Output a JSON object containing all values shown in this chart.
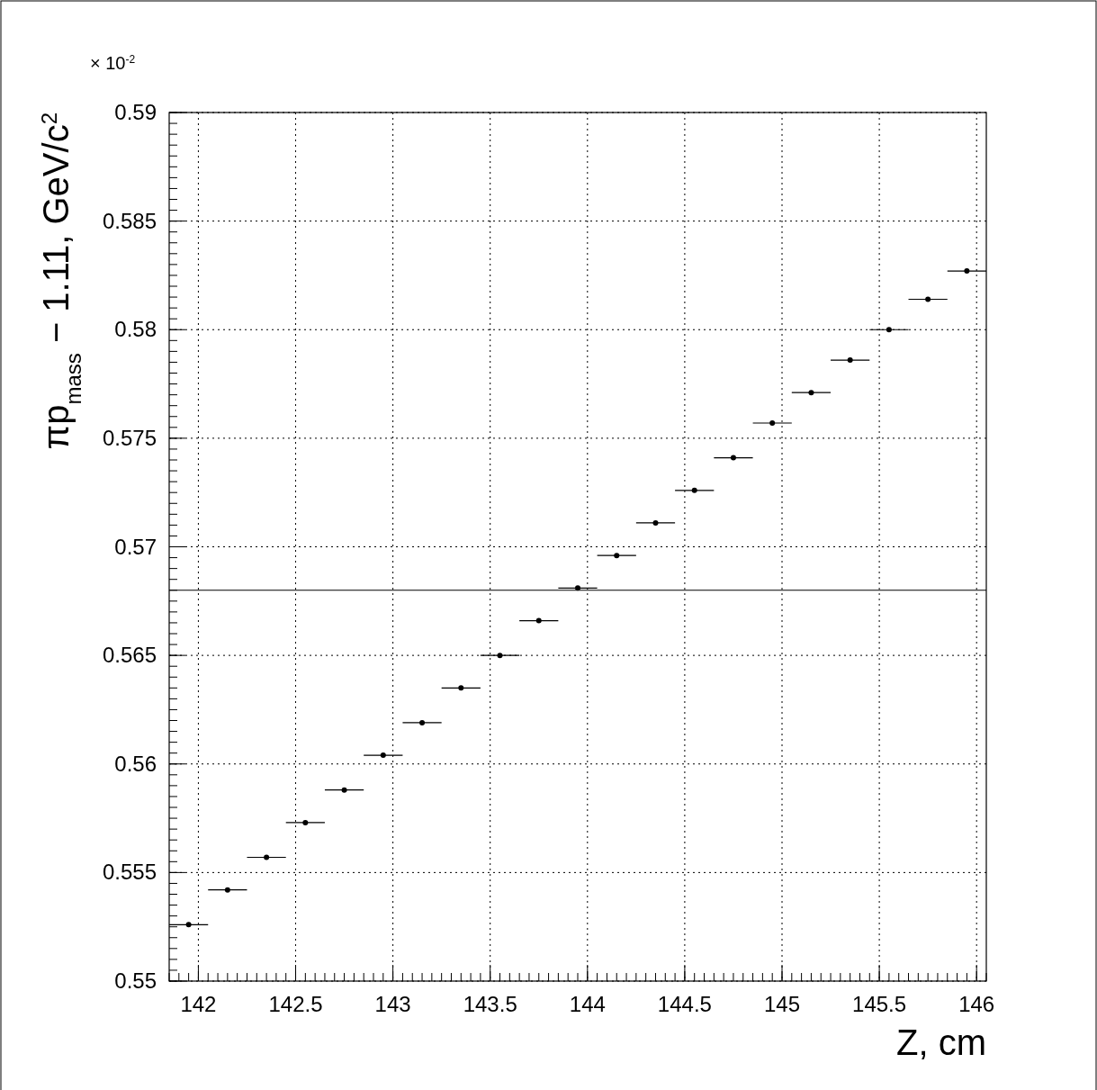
{
  "chart_data": {
    "type": "scatter",
    "marker": "circle",
    "xlabel": "Z, cm",
    "ylabel": "πp$_{mass}$ − 1.11, GeV/c$^{2}$",
    "annotations": [
      "× 10$^{-2}$"
    ],
    "x": [
      141.95,
      142.15,
      142.35,
      142.55,
      142.75,
      142.95,
      143.15,
      143.35,
      143.55,
      143.75,
      143.95,
      144.15,
      144.35,
      144.55,
      144.75,
      144.95,
      145.15,
      145.35,
      145.55,
      145.75,
      145.95
    ],
    "xerrors": [
      0.1,
      0.1,
      0.1,
      0.1,
      0.1,
      0.1,
      0.1,
      0.1,
      0.1,
      0.1,
      0.1,
      0.1,
      0.1,
      0.1,
      0.1,
      0.1,
      0.1,
      0.1,
      0.1,
      0.1,
      0.1
    ],
    "values": [
      0.5526,
      0.5542,
      0.5557,
      0.5573,
      0.5588,
      0.5604,
      0.5619,
      0.5635,
      0.565,
      0.5666,
      0.5681,
      0.5696,
      0.5711,
      0.5726,
      0.5741,
      0.5757,
      0.5771,
      0.5786,
      0.58,
      0.5814,
      0.5827
    ],
    "color": "#000000",
    "xlim": [
      141.85,
      146.05
    ],
    "ylim": [
      0.55,
      0.59
    ],
    "xticks": [
      142,
      142.5,
      143,
      143.5,
      144,
      144.5,
      145,
      145.5,
      146
    ],
    "yticks": [
      0.55,
      0.555,
      0.56,
      0.565,
      0.57,
      0.575,
      0.58,
      0.585,
      0.59
    ],
    "grid": true,
    "ref_lines": [
      {
        "axis": "y",
        "value": 0.568,
        "color": "#000000"
      }
    ]
  }
}
